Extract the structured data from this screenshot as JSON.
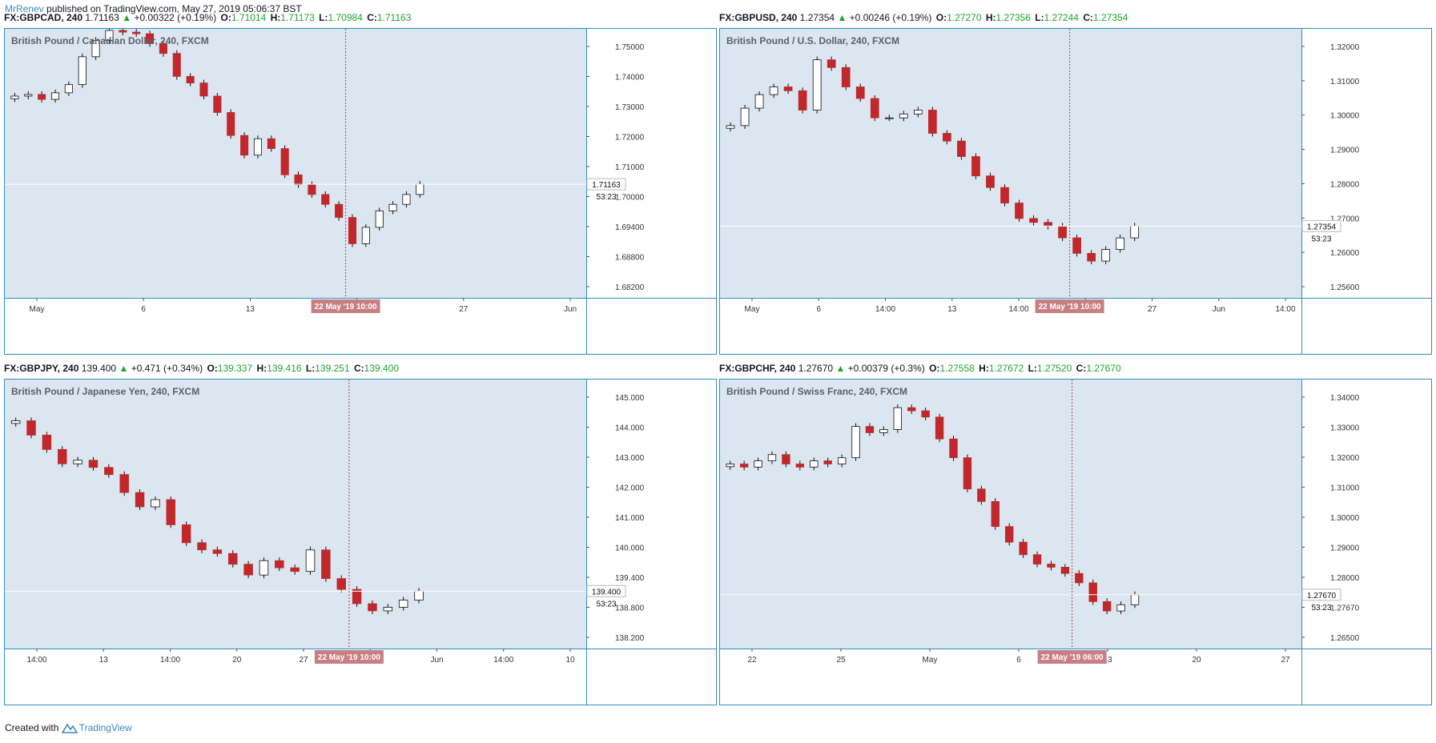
{
  "header": {
    "author": "MrRenev",
    "text": "published on TradingView.com, May 27, 2019 05:06:37 BST"
  },
  "footer": {
    "prefix": "Created with",
    "brand": "TradingView"
  },
  "colors": {
    "up": "#ffffff",
    "down": "#c0282b",
    "wick": "#111111",
    "bg": "#dbe6f1",
    "border": "#2d8fbe",
    "marker": "#c87f84",
    "green": "#20a42d",
    "crosshair": "#b0474b"
  },
  "chart_data": [
    {
      "type": "candlestick",
      "quote": {
        "symbol": "FX:GBPCAD, 240",
        "last": "1.71163",
        "change": "+0.00322 (+0.19%)",
        "O": "1.71014",
        "H": "1.71173",
        "L": "1.70984",
        "C": "1.71163"
      },
      "title": "British Pound / Canadian Dollar, 240, FXCM",
      "ylim": [
        1.677,
        1.759
      ],
      "ticks": [
        "1.75000",
        "1.74000",
        "1.73000",
        "1.72000",
        "1.71000",
        "1.70000",
        "1.69400",
        "1.68800",
        "1.68200"
      ],
      "xlabels": [
        "May",
        "6",
        "13",
        "20",
        "27",
        "Jun"
      ],
      "last_label": "1.71163",
      "countdown": "53:23",
      "crosshair_label": "22 May '19   10:00",
      "close": [
        1.7385,
        1.739,
        1.7375,
        1.7395,
        1.742,
        1.7505,
        1.7555,
        1.7585,
        1.758,
        1.7575,
        1.7545,
        1.7515,
        1.7445,
        1.7425,
        1.7385,
        1.7335,
        1.7265,
        1.7205,
        1.7255,
        1.7225,
        1.7145,
        1.7115,
        1.7085,
        1.7055,
        1.7015,
        1.6935,
        1.6985,
        1.7035,
        1.7055,
        1.7085,
        1.71163
      ]
    },
    {
      "type": "candlestick",
      "quote": {
        "symbol": "FX:GBPUSD, 240",
        "last": "1.27354",
        "change": "+0.00246 (+0.19%)",
        "O": "1.27270",
        "H": "1.27356",
        "L": "1.27244",
        "C": "1.27354"
      },
      "title": "British Pound / U.S. Dollar, 240, FXCM",
      "ylim": [
        1.255,
        1.3245
      ],
      "ticks": [
        "1.32000",
        "1.31000",
        "1.30000",
        "1.29000",
        "1.28000",
        "1.27000",
        "1.26000",
        "1.25600"
      ],
      "xlabels": [
        "May",
        "6",
        "14:00",
        "13",
        "14:00",
        "20",
        "27",
        "Jun",
        "14:00"
      ],
      "last_label": "1.27354",
      "countdown": "53:23",
      "crosshair_label": "22 May '19   10:00",
      "close": [
        1.2995,
        1.304,
        1.3075,
        1.3095,
        1.3085,
        1.3035,
        1.3165,
        1.3145,
        1.3095,
        1.3065,
        1.3015,
        1.3015,
        1.3025,
        1.3035,
        1.2975,
        1.2955,
        1.2915,
        1.2865,
        1.2835,
        1.2795,
        1.2755,
        1.2745,
        1.2735,
        1.2705,
        1.2665,
        1.2645,
        1.2675,
        1.2705,
        1.27354
      ]
    },
    {
      "type": "candlestick",
      "quote": {
        "symbol": "FX:GBPJPY, 240",
        "last": "139.400",
        "change": "+0.471 (+0.34%)",
        "O": "139.337",
        "H": "139.416",
        "L": "139.251",
        "C": "139.400"
      },
      "title": "British Pound / Japanese Yen, 240, FXCM",
      "ylim": [
        137.8,
        145.3
      ],
      "ticks": [
        "145.000",
        "144.000",
        "143.000",
        "142.000",
        "141.000",
        "140.000",
        "139.400",
        "138.800",
        "138.200"
      ],
      "xlabels": [
        "14:00",
        "13",
        "14:00",
        "20",
        "27",
        "14:00",
        "Jun",
        "14:00",
        "10"
      ],
      "last_label": "139.400",
      "countdown": "53:23",
      "crosshair_label": "22 May '19   10:00",
      "close": [
        144.15,
        143.75,
        143.35,
        142.95,
        143.05,
        142.85,
        142.65,
        142.15,
        141.75,
        141.95,
        141.25,
        140.75,
        140.55,
        140.45,
        140.15,
        139.85,
        140.25,
        140.05,
        139.95,
        140.55,
        139.75,
        139.45,
        139.05,
        138.85,
        138.95,
        139.15,
        139.4
      ]
    },
    {
      "type": "candlestick",
      "quote": {
        "symbol": "FX:GBPCHF, 240",
        "last": "1.27670",
        "change": "+0.00379 (+0.3%)",
        "O": "1.27558",
        "H": "1.27672",
        "L": "1.27520",
        "C": "1.27670"
      },
      "title": "British Pound / Swiss Franc, 240, FXCM",
      "ylim": [
        1.2595,
        1.3455
      ],
      "ticks": [
        "1.34000",
        "1.33000",
        "1.32000",
        "1.31000",
        "1.30000",
        "1.29000",
        "1.28000",
        "1.27670",
        "1.26500"
      ],
      "xlabels": [
        "22",
        "25",
        "May",
        "6",
        "13",
        "20",
        "27"
      ],
      "last_label": "1.27670",
      "countdown": "53:23",
      "crosshair_label": "22 May '19   06:00",
      "close": [
        1.3185,
        1.3175,
        1.3195,
        1.3215,
        1.3185,
        1.3175,
        1.3195,
        1.3185,
        1.3205,
        1.3305,
        1.3285,
        1.3295,
        1.3365,
        1.3355,
        1.3335,
        1.3265,
        1.3205,
        1.3105,
        1.3065,
        1.2985,
        1.2935,
        1.2895,
        1.2865,
        1.2855,
        1.2835,
        1.2805,
        1.2745,
        1.2715,
        1.2735,
        1.2767
      ]
    }
  ]
}
